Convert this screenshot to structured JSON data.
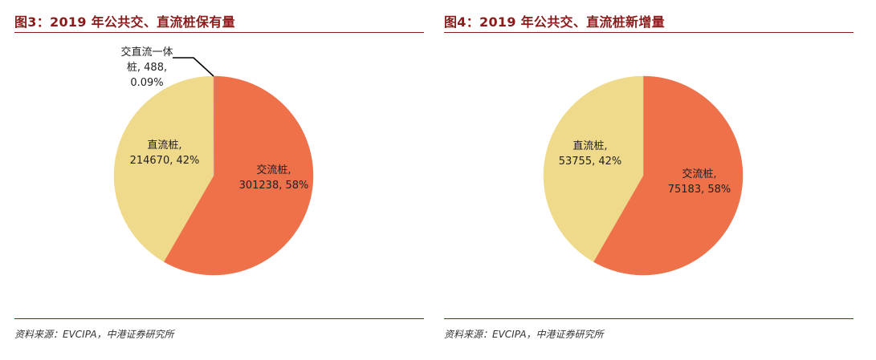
{
  "figures": [
    {
      "title": "图3：2019 年公共交、直流桩保有量",
      "source": "资料来源：EVCIPA，中港证券研究所"
    },
    {
      "title": "图4：2019 年公共交、直流桩新增量",
      "source": "资料来源：EVCIPA，中港证券研究所"
    }
  ],
  "chart_data": [
    {
      "type": "pie",
      "title": "图3：2019 年公共交、直流桩保有量",
      "slices": [
        {
          "name": "交流桩",
          "value": 301238,
          "percent": "58%",
          "color": "#ee714a"
        },
        {
          "name": "直流桩",
          "value": 214670,
          "percent": "42%",
          "color": "#efd98b"
        },
        {
          "name": "交直流一体桩",
          "value": 488,
          "percent": "0.09%",
          "color": "#c9c9c9"
        }
      ],
      "labels": [
        {
          "lines": [
            "交流桩,",
            "301238, 58%"
          ]
        },
        {
          "lines": [
            "直流桩,",
            "214670, 42%"
          ]
        },
        {
          "lines": [
            "交直流一体",
            "桩, 488,",
            "0.09%"
          ]
        }
      ],
      "source": "资料来源：EVCIPA，中港证券研究所"
    },
    {
      "type": "pie",
      "title": "图4：2019 年公共交、直流桩新增量",
      "slices": [
        {
          "name": "交流桩",
          "value": 75183,
          "percent": "58%",
          "color": "#ee714a"
        },
        {
          "name": "直流桩",
          "value": 53755,
          "percent": "42%",
          "color": "#efd98b"
        }
      ],
      "labels": [
        {
          "lines": [
            "交流桩,",
            "75183, 58%"
          ]
        },
        {
          "lines": [
            "直流桩,",
            "53755, 42%"
          ]
        }
      ],
      "source": "资料来源：EVCIPA，中港证券研究所"
    }
  ]
}
